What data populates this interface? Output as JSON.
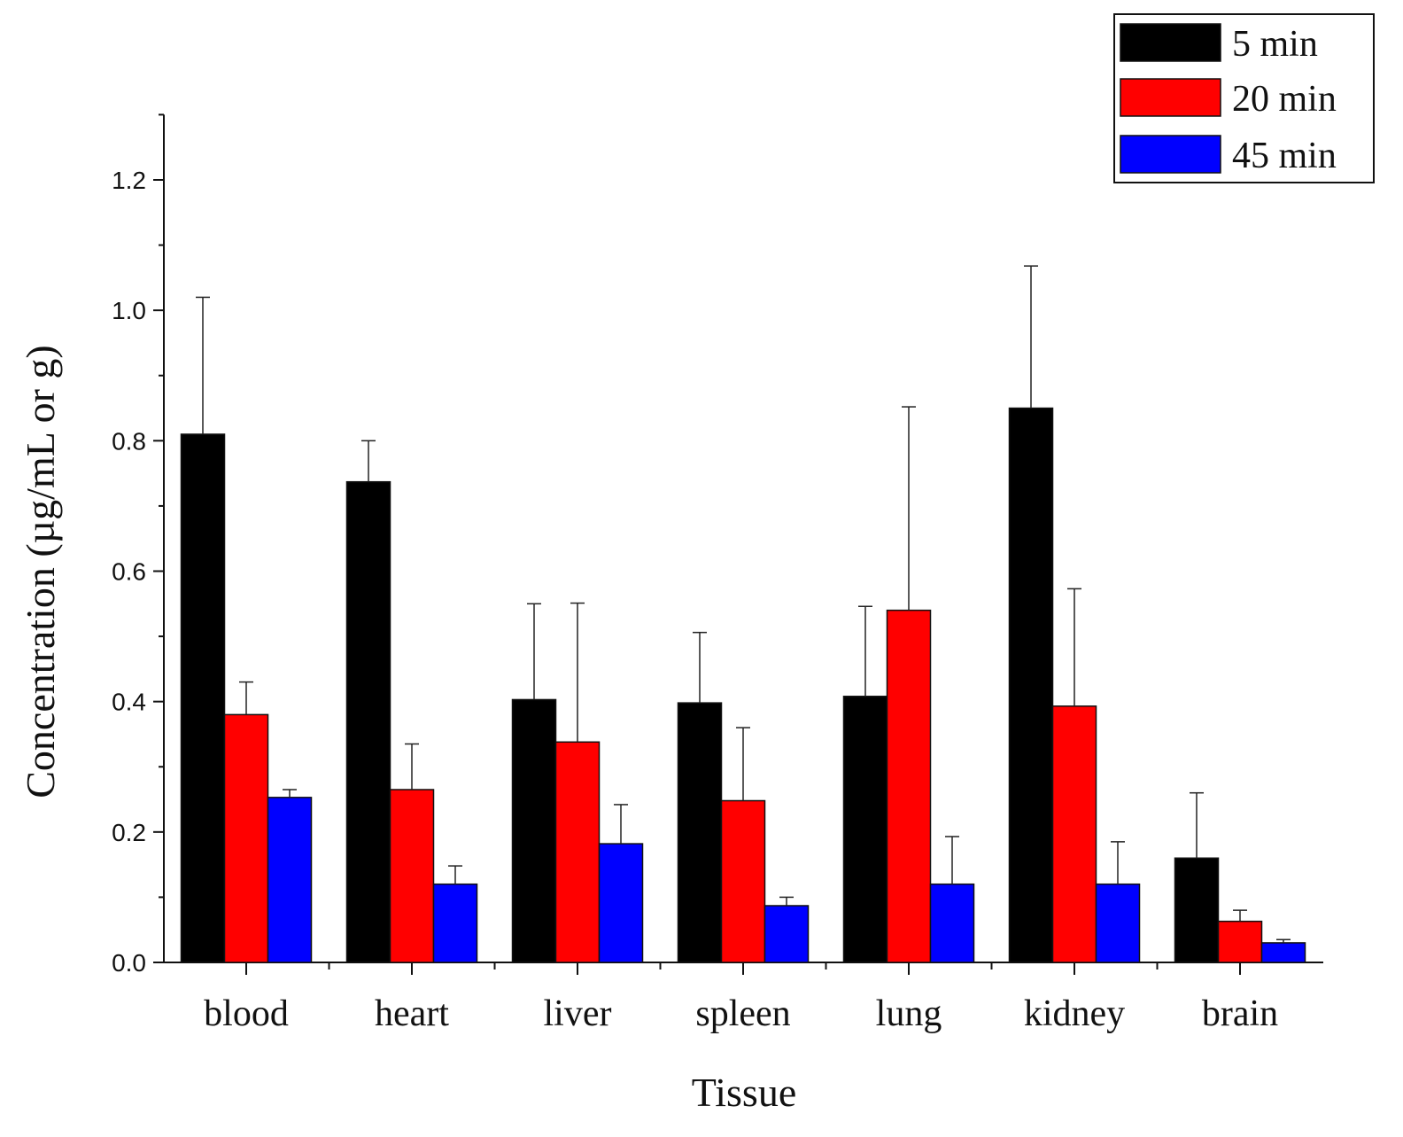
{
  "chart_data": {
    "type": "bar",
    "title": "",
    "xlabel": "Tissue",
    "ylabel": "Concentration (µg/mL or g)",
    "ylim": [
      0,
      1.3
    ],
    "yticks": [
      0.0,
      0.2,
      0.4,
      0.6,
      0.8,
      1.0,
      1.2
    ],
    "ytick_labels": [
      "0.0",
      "0.2",
      "0.4",
      "0.6",
      "0.8",
      "1.0",
      "1.2"
    ],
    "categories": [
      "blood",
      "heart",
      "liver",
      "spleen",
      "lung",
      "kidney",
      "brain"
    ],
    "series": [
      {
        "name": "5 min",
        "color": "#000000",
        "values": [
          0.81,
          0.737,
          0.403,
          0.398,
          0.408,
          0.85,
          0.16
        ],
        "errors": [
          0.21,
          0.063,
          0.147,
          0.108,
          0.138,
          0.218,
          0.1
        ]
      },
      {
        "name": "20 min",
        "color": "#ff0000",
        "values": [
          0.38,
          0.265,
          0.338,
          0.248,
          0.54,
          0.393,
          0.063
        ],
        "errors": [
          0.05,
          0.07,
          0.213,
          0.112,
          0.312,
          0.18,
          0.017
        ]
      },
      {
        "name": "45 min",
        "color": "#0000ff",
        "values": [
          0.253,
          0.12,
          0.182,
          0.087,
          0.12,
          0.12,
          0.03
        ],
        "errors": [
          0.012,
          0.028,
          0.06,
          0.013,
          0.073,
          0.065,
          0.005
        ]
      }
    ],
    "legend_position": "top-right",
    "grid": false
  }
}
